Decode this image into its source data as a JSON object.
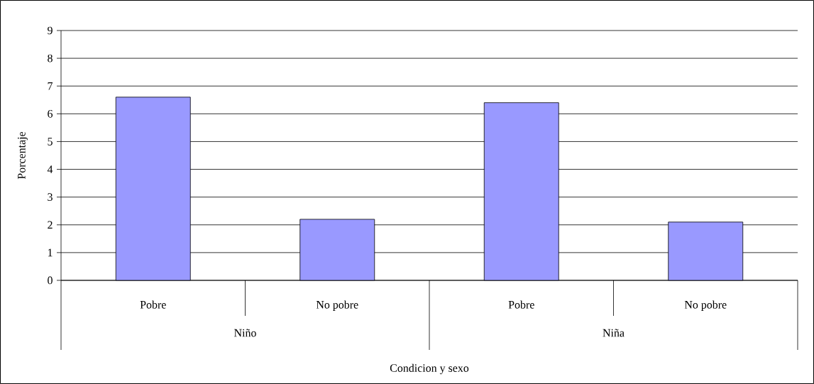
{
  "chart_data": {
    "type": "bar",
    "xlabel": "Condicion y sexo",
    "ylabel": "Porcentaje",
    "categories": [
      "Pobre",
      "No pobre",
      "Pobre",
      "No pobre"
    ],
    "values": [
      6.6,
      2.2,
      6.4,
      2.1
    ],
    "color": "#9999ff",
    "ylim": [
      0,
      9
    ],
    "yticks": [
      0,
      1,
      2,
      3,
      4,
      5,
      6,
      7,
      8,
      9
    ],
    "grid": "y",
    "annotations": [
      "Niño",
      "Niña"
    ]
  }
}
